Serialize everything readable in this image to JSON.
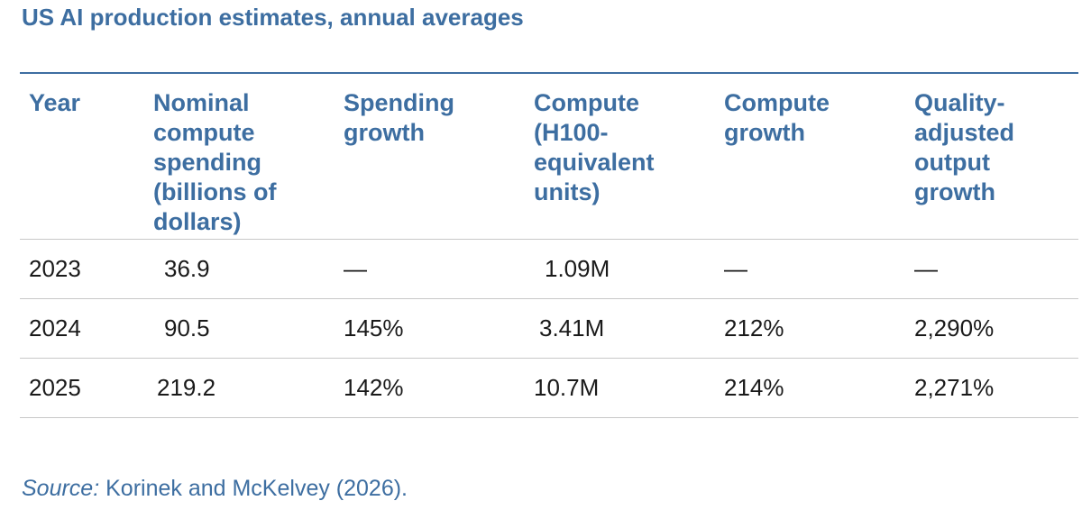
{
  "title": "US AI production estimates, annual averages",
  "table": {
    "headers": [
      [
        "Year"
      ],
      [
        "Nominal",
        "compute",
        "spending",
        "(billions of",
        "dollars)"
      ],
      [
        "Spending",
        "growth"
      ],
      [
        "Compute",
        "(H100-",
        "equivalent",
        "units)"
      ],
      [
        "Compute",
        "growth"
      ],
      [
        "Quality-",
        "adjusted",
        "output",
        "growth"
      ]
    ],
    "rows": [
      [
        "2023",
        "36.9",
        "—",
        "1.09M",
        "—",
        "—"
      ],
      [
        "2024",
        "90.5",
        "145%",
        "3.41M",
        "212%",
        "2,290%"
      ],
      [
        "2025",
        "219.2",
        "142%",
        "10.7M",
        "214%",
        "2,271%"
      ]
    ]
  },
  "source": {
    "label": "Source:",
    "text": " Korinek and McKelvey (2026)."
  },
  "colors": {
    "accent": "#3d6ea1",
    "text": "#1a1a1a",
    "rule": "#c8c8c8"
  }
}
